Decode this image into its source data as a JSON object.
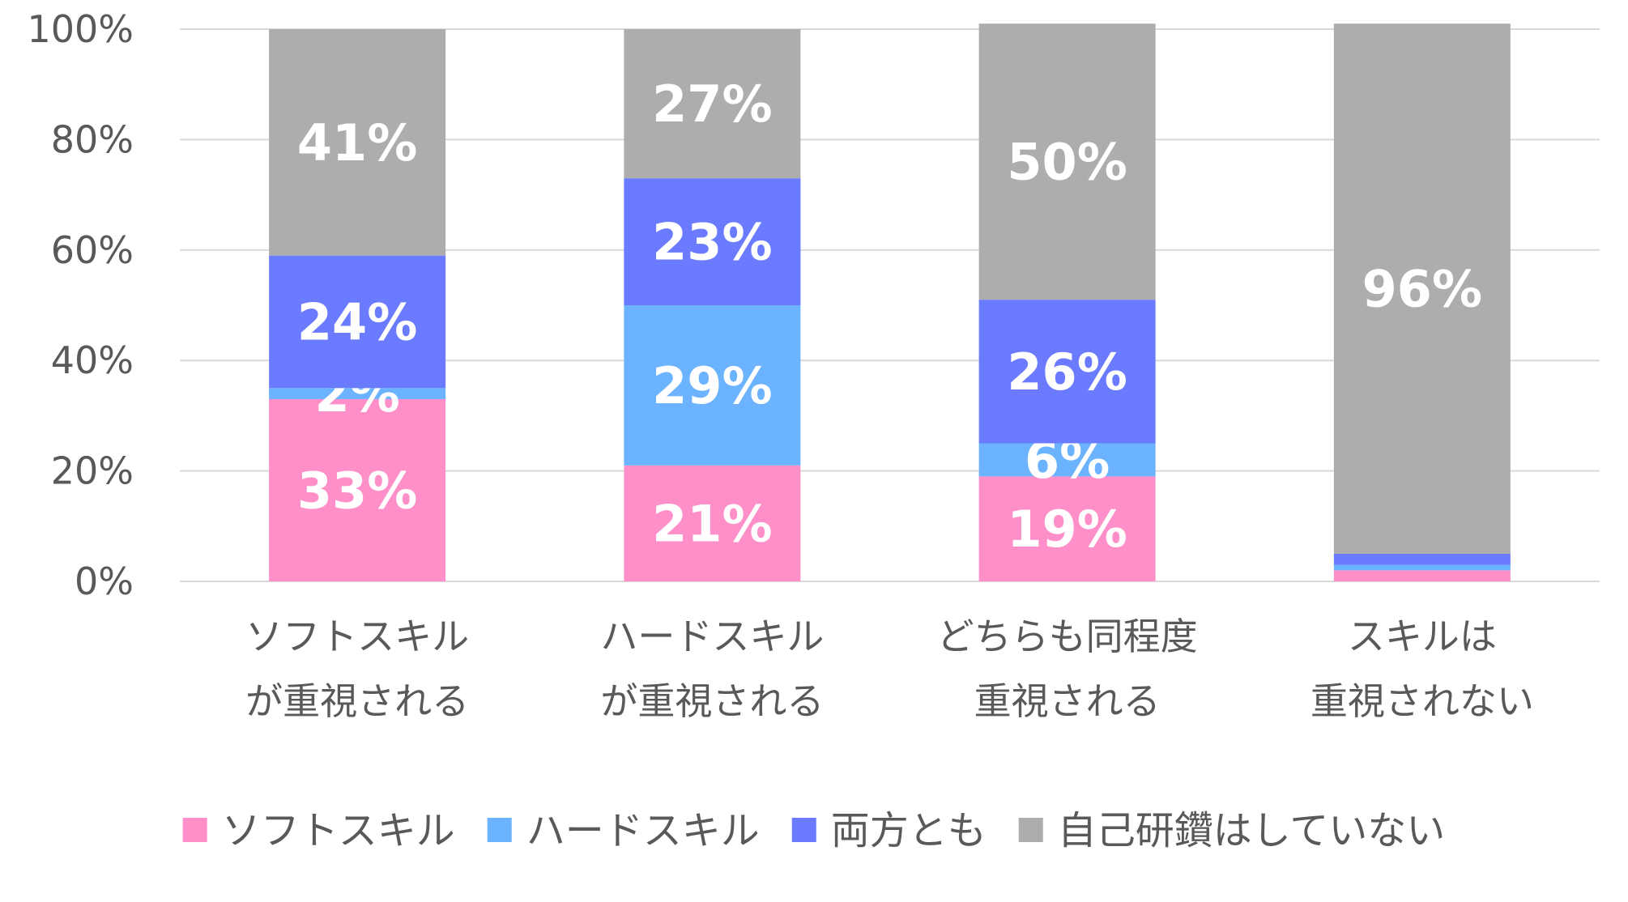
{
  "chart_data": {
    "type": "bar",
    "stacked": true,
    "categories": [
      [
        "ソフトスキル",
        "が重視される"
      ],
      [
        "ハードスキル",
        "が重視される"
      ],
      [
        "どちらも同程度",
        "重視される"
      ],
      [
        "スキルは",
        "重視されない"
      ]
    ],
    "series": [
      {
        "name": "ソフトスキル",
        "color": "#FF8FC8",
        "values": [
          33,
          21,
          19,
          2
        ],
        "labels": [
          "33%",
          "21%",
          "19%",
          ""
        ]
      },
      {
        "name": "ハードスキル",
        "color": "#6BB3FF",
        "values": [
          2,
          29,
          6,
          1
        ],
        "labels": [
          "2%",
          "29%",
          "6%",
          ""
        ]
      },
      {
        "name": "両方とも",
        "color": "#6B7BFF",
        "values": [
          24,
          23,
          26,
          2
        ],
        "labels": [
          "24%",
          "23%",
          "26%",
          ""
        ]
      },
      {
        "name": "自己研鑽はしていない",
        "color": "#ADADAD",
        "values": [
          41,
          27,
          50,
          96
        ],
        "labels": [
          "41%",
          "27%",
          "50%",
          "96%"
        ]
      }
    ],
    "yticks": [
      "0%",
      "20%",
      "40%",
      "60%",
      "80%",
      "100%"
    ],
    "ylim": [
      0,
      100
    ],
    "grid": true,
    "legend": "bottom"
  }
}
